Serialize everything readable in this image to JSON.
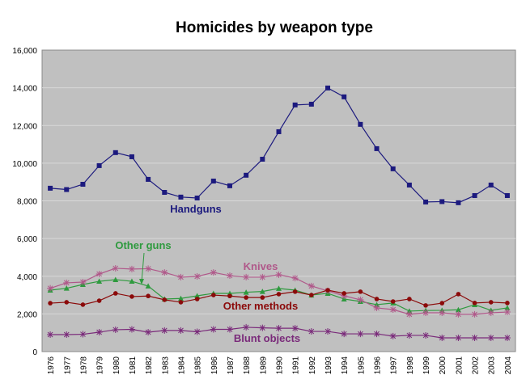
{
  "chart_data": {
    "type": "line",
    "title": "Homicides by weapon type",
    "xlabel": "",
    "ylabel": "",
    "ylim": [
      0,
      16000
    ],
    "yticks": [
      "0",
      "2,000",
      "4,000",
      "6,000",
      "8,000",
      "10,000",
      "12,000",
      "14,000",
      "16,000"
    ],
    "grid": "horizontal",
    "background": "#c0c0c0",
    "categories": [
      "1976",
      "1977",
      "1978",
      "1979",
      "1980",
      "1981",
      "1982",
      "1983",
      "1984",
      "1985",
      "1986",
      "1987",
      "1988",
      "1989",
      "1990",
      "1991",
      "1992",
      "1993",
      "1994",
      "1995",
      "1996",
      "1997",
      "1998",
      "1999",
      "2000",
      "2001",
      "2002",
      "2003",
      "2004"
    ],
    "series": [
      {
        "name": "Handguns",
        "color": "#1c1a7e",
        "marker": "square",
        "values": [
          8670,
          8600,
          8880,
          9870,
          10560,
          10340,
          9140,
          8450,
          8200,
          8150,
          9050,
          8800,
          9360,
          10210,
          11670,
          13090,
          13130,
          13990,
          13520,
          12060,
          10770,
          9700,
          8840,
          7940,
          7960,
          7900,
          8280,
          8840,
          8280
        ]
      },
      {
        "name": "Other guns",
        "color": "#2e9a3e",
        "marker": "triangle",
        "values": [
          3260,
          3360,
          3560,
          3730,
          3820,
          3730,
          3480,
          2790,
          2820,
          2960,
          3090,
          3090,
          3150,
          3190,
          3350,
          3260,
          3000,
          3090,
          2790,
          2660,
          2490,
          2580,
          2150,
          2180,
          2190,
          2220,
          2490,
          2190,
          2320
        ]
      },
      {
        "name": "Knives",
        "color": "#b0588a",
        "marker": "star",
        "values": [
          3360,
          3650,
          3690,
          4120,
          4420,
          4380,
          4400,
          4200,
          3950,
          3990,
          4200,
          4030,
          3950,
          3950,
          4080,
          3900,
          3480,
          3220,
          2960,
          2750,
          2320,
          2230,
          1980,
          2060,
          2060,
          1980,
          1980,
          2060,
          2100
        ]
      },
      {
        "name": "Other methods",
        "color": "#8b0a0a",
        "marker": "circle",
        "values": [
          2570,
          2620,
          2490,
          2700,
          3090,
          2920,
          2950,
          2750,
          2620,
          2790,
          3000,
          2950,
          2870,
          2870,
          3050,
          3180,
          3000,
          3260,
          3090,
          3180,
          2790,
          2660,
          2790,
          2450,
          2570,
          3050,
          2580,
          2620,
          2580
        ]
      },
      {
        "name": "Blunt objects",
        "color": "#7a2a7a",
        "marker": "star",
        "values": [
          900,
          900,
          920,
          1030,
          1160,
          1180,
          1030,
          1120,
          1120,
          1050,
          1180,
          1180,
          1290,
          1260,
          1240,
          1240,
          1070,
          1070,
          940,
          940,
          940,
          820,
          860,
          860,
          730,
          730,
          730,
          730,
          730
        ]
      }
    ]
  }
}
